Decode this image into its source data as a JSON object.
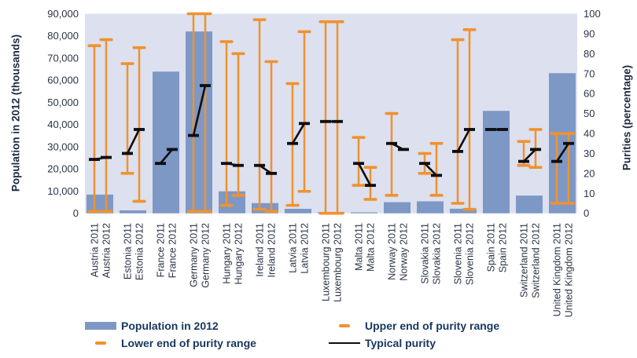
{
  "chart_data": {
    "type": "bar",
    "title": "",
    "left_axis": {
      "label": "Population in 2012 (thousands)",
      "min": 0,
      "max": 90000,
      "tick_step": 10000,
      "tick_labels": [
        "0",
        "10,000",
        "20,000",
        "30,000",
        "40,000",
        "50,000",
        "60,000",
        "70,000",
        "80,000",
        "90,000"
      ]
    },
    "right_axis": {
      "label": "Purities (percentage)",
      "min": 0,
      "max": 100,
      "tick_step": 10,
      "tick_labels": [
        "0",
        "10",
        "20",
        "30",
        "40",
        "50",
        "60",
        "70",
        "80",
        "90",
        "100"
      ]
    },
    "years": [
      "2011",
      "2012"
    ],
    "grid": false,
    "series": [
      {
        "country": "Austria",
        "population_2012": 8450,
        "purity_2011": {
          "low": 1,
          "high": 84,
          "typical": 27
        },
        "purity_2012": {
          "low": 1,
          "high": 87,
          "typical": 28
        }
      },
      {
        "country": "Estonia",
        "population_2012": 1320,
        "purity_2011": {
          "low": 20,
          "high": 75,
          "typical": 30
        },
        "purity_2012": {
          "low": 6,
          "high": 83,
          "typical": 42
        }
      },
      {
        "country": "France",
        "population_2012": 63900,
        "purity_2011": {
          "low": null,
          "high": null,
          "typical": 25
        },
        "purity_2012": {
          "low": null,
          "high": null,
          "typical": 32
        }
      },
      {
        "country": "Germany",
        "population_2012": 82000,
        "purity_2011": {
          "low": 1,
          "high": 100,
          "typical": 39
        },
        "purity_2012": {
          "low": 1,
          "high": 100,
          "typical": 64
        }
      },
      {
        "country": "Hungary",
        "population_2012": 9930,
        "purity_2011": {
          "low": 4,
          "high": 86,
          "typical": 25
        },
        "purity_2012": {
          "low": 9,
          "high": 80,
          "typical": 24
        }
      },
      {
        "country": "Ireland",
        "population_2012": 4590,
        "purity_2011": {
          "low": 2,
          "high": 97,
          "typical": 24
        },
        "purity_2012": {
          "low": 1,
          "high": 76,
          "typical": 20
        }
      },
      {
        "country": "Latvia",
        "population_2012": 2030,
        "purity_2011": {
          "low": 4,
          "high": 65,
          "typical": 35
        },
        "purity_2012": {
          "low": 11,
          "high": 91,
          "typical": 45
        }
      },
      {
        "country": "Luxembourg",
        "population_2012": 530,
        "purity_2011": {
          "low": 0,
          "high": 96,
          "typical": 46
        },
        "purity_2012": {
          "low": 0,
          "high": 96,
          "typical": 46
        }
      },
      {
        "country": "Malta",
        "population_2012": 420,
        "purity_2011": {
          "low": 14,
          "high": 38,
          "typical": 25
        },
        "purity_2012": {
          "low": 7,
          "high": 23,
          "typical": 14
        }
      },
      {
        "country": "Norway",
        "population_2012": 5020,
        "purity_2011": {
          "low": 9,
          "high": 50,
          "typical": 35
        },
        "purity_2012": {
          "low": null,
          "high": null,
          "typical": 32
        }
      },
      {
        "country": "Slovakia",
        "population_2012": 5410,
        "purity_2011": {
          "low": 20,
          "high": 30,
          "typical": 25
        },
        "purity_2012": {
          "low": 9,
          "high": 35,
          "typical": 19
        }
      },
      {
        "country": "Slovenia",
        "population_2012": 2060,
        "purity_2011": {
          "low": 5,
          "high": 87,
          "typical": 31
        },
        "purity_2012": {
          "low": 2,
          "high": 92,
          "typical": 42
        }
      },
      {
        "country": "Spain",
        "population_2012": 46200,
        "purity_2011": {
          "low": null,
          "high": null,
          "typical": 42
        },
        "purity_2012": {
          "low": null,
          "high": null,
          "typical": 42
        }
      },
      {
        "country": "Switzerland",
        "population_2012": 8000,
        "purity_2011": {
          "low": 24,
          "high": 36,
          "typical": 26
        },
        "purity_2012": {
          "low": 23,
          "high": 42,
          "typical": 32
        }
      },
      {
        "country": "United Kingdom",
        "population_2012": 63200,
        "purity_2011": {
          "low": 5,
          "high": 40,
          "typical": 26
        },
        "purity_2012": {
          "low": 5,
          "high": 40,
          "typical": 35
        }
      }
    ],
    "legend": {
      "population": {
        "label": "Population in 2012"
      },
      "lower": {
        "label": "Lower end of purity range"
      },
      "upper": {
        "label": "Upper end of purity range"
      },
      "typical": {
        "label": "Typical purity"
      }
    },
    "colors": {
      "bar": "#7e98c6",
      "plot_background": "#dce0ef",
      "range": "#f0922d",
      "typical": "#0e0e10",
      "tick_text": "#2b3346",
      "legend_text": "#17375e"
    },
    "legend_position": "bottom"
  }
}
